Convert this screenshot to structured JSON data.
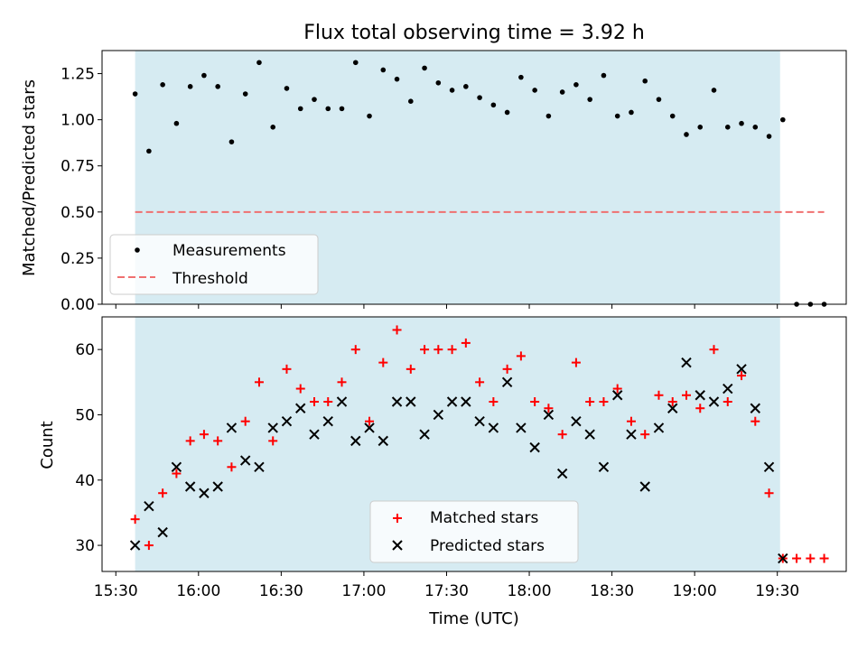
{
  "chart_data": [
    {
      "type": "scatter",
      "title": "Flux total observing time = 3.92 h",
      "ylabel": "Matched/Predicted stars",
      "ylim": [
        0,
        1.375
      ],
      "yticks": [
        0.0,
        0.25,
        0.5,
        0.75,
        1.0,
        1.25
      ],
      "yticklabels": [
        "0.00",
        "0.25",
        "0.50",
        "0.75",
        "1.00",
        "1.25"
      ],
      "shaded_span": {
        "x": [
          "15:37",
          "19:31"
        ],
        "color": "#add8e6"
      },
      "series": [
        {
          "name": "Measurements",
          "marker": "dot",
          "color": "#000000",
          "x": [
            "15:37",
            "15:42",
            "15:47",
            "15:52",
            "15:57",
            "16:02",
            "16:07",
            "16:12",
            "16:17",
            "16:22",
            "16:27",
            "16:32",
            "16:37",
            "16:42",
            "16:47",
            "16:52",
            "16:57",
            "17:02",
            "17:07",
            "17:12",
            "17:17",
            "17:22",
            "17:27",
            "17:32",
            "17:37",
            "17:42",
            "17:47",
            "17:52",
            "17:57",
            "18:02",
            "18:07",
            "18:12",
            "18:17",
            "18:22",
            "18:27",
            "18:32",
            "18:37",
            "18:42",
            "18:47",
            "18:52",
            "18:57",
            "19:02",
            "19:07",
            "19:12",
            "19:17",
            "19:22",
            "19:27",
            "19:32",
            "19:37",
            "19:42",
            "19:47"
          ],
          "y": [
            1.14,
            0.83,
            1.19,
            0.98,
            1.18,
            1.24,
            1.18,
            0.88,
            1.14,
            1.31,
            0.96,
            1.17,
            1.06,
            1.11,
            1.06,
            1.06,
            1.31,
            1.02,
            1.27,
            1.22,
            1.1,
            1.28,
            1.2,
            1.16,
            1.18,
            1.12,
            1.08,
            1.04,
            1.23,
            1.16,
            1.02,
            1.15,
            1.19,
            1.11,
            1.24,
            1.02,
            1.04,
            1.21,
            1.11,
            1.02,
            0.92,
            0.96,
            1.16,
            0.96,
            0.98,
            0.96,
            0.91,
            1.0,
            0.0,
            0.0,
            0.0
          ]
        },
        {
          "name": "Threshold",
          "style": "dashed",
          "color": "#f07070",
          "x": [
            "15:37",
            "19:47"
          ],
          "y": [
            0.5,
            0.5
          ]
        }
      ],
      "legend": "lower-left"
    },
    {
      "type": "scatter",
      "xlabel": "Time (UTC)",
      "ylabel": "Count",
      "ylim": [
        26,
        65
      ],
      "yticks": [
        30,
        40,
        50,
        60
      ],
      "yticklabels": [
        "30",
        "40",
        "50",
        "60"
      ],
      "xticks": [
        "15:30",
        "16:00",
        "16:30",
        "17:00",
        "17:30",
        "18:00",
        "18:30",
        "19:00",
        "19:30"
      ],
      "xlim": [
        "15:25",
        "19:55"
      ],
      "shaded_span": {
        "x": [
          "15:37",
          "19:31"
        ],
        "color": "#add8e6"
      },
      "series": [
        {
          "name": "Matched stars",
          "marker": "plus",
          "color": "#ff0000",
          "x": [
            "15:37",
            "15:42",
            "15:47",
            "15:52",
            "15:57",
            "16:02",
            "16:07",
            "16:12",
            "16:17",
            "16:22",
            "16:27",
            "16:32",
            "16:37",
            "16:42",
            "16:47",
            "16:52",
            "16:57",
            "17:02",
            "17:07",
            "17:12",
            "17:17",
            "17:22",
            "17:27",
            "17:32",
            "17:37",
            "17:42",
            "17:47",
            "17:52",
            "17:57",
            "18:02",
            "18:07",
            "18:12",
            "18:17",
            "18:22",
            "18:27",
            "18:32",
            "18:37",
            "18:42",
            "18:47",
            "18:52",
            "18:57",
            "19:02",
            "19:07",
            "19:12",
            "19:17",
            "19:22",
            "19:27",
            "19:32",
            "19:37",
            "19:42",
            "19:47"
          ],
          "y": [
            34,
            30,
            38,
            41,
            46,
            47,
            46,
            42,
            49,
            55,
            46,
            57,
            54,
            52,
            52,
            55,
            60,
            49,
            58,
            63,
            57,
            60,
            60,
            60,
            61,
            55,
            52,
            57,
            59,
            52,
            51,
            47,
            58,
            52,
            52,
            54,
            49,
            47,
            53,
            52,
            53,
            51,
            60,
            52,
            56,
            49,
            38,
            28,
            28,
            28,
            28
          ]
        },
        {
          "name": "Predicted stars",
          "marker": "x",
          "color": "#000000",
          "x": [
            "15:37",
            "15:42",
            "15:47",
            "15:52",
            "15:57",
            "16:02",
            "16:07",
            "16:12",
            "16:17",
            "16:22",
            "16:27",
            "16:32",
            "16:37",
            "16:42",
            "16:47",
            "16:52",
            "16:57",
            "17:02",
            "17:07",
            "17:12",
            "17:17",
            "17:22",
            "17:27",
            "17:32",
            "17:37",
            "17:42",
            "17:47",
            "17:52",
            "17:57",
            "18:02",
            "18:07",
            "18:12",
            "18:17",
            "18:22",
            "18:27",
            "18:32",
            "18:37",
            "18:42",
            "18:47",
            "18:52",
            "18:57",
            "19:02",
            "19:07",
            "19:12",
            "19:17",
            "19:22",
            "19:27",
            "19:32"
          ],
          "y": [
            30,
            36,
            32,
            42,
            39,
            38,
            39,
            48,
            43,
            42,
            48,
            49,
            51,
            47,
            49,
            52,
            46,
            48,
            46,
            52,
            52,
            47,
            50,
            52,
            52,
            49,
            48,
            55,
            48,
            45,
            50,
            41,
            49,
            47,
            42,
            53,
            47,
            39,
            48,
            51,
            58,
            53,
            52,
            54,
            57,
            51,
            42,
            28
          ]
        }
      ],
      "legend": "lower-center"
    }
  ]
}
